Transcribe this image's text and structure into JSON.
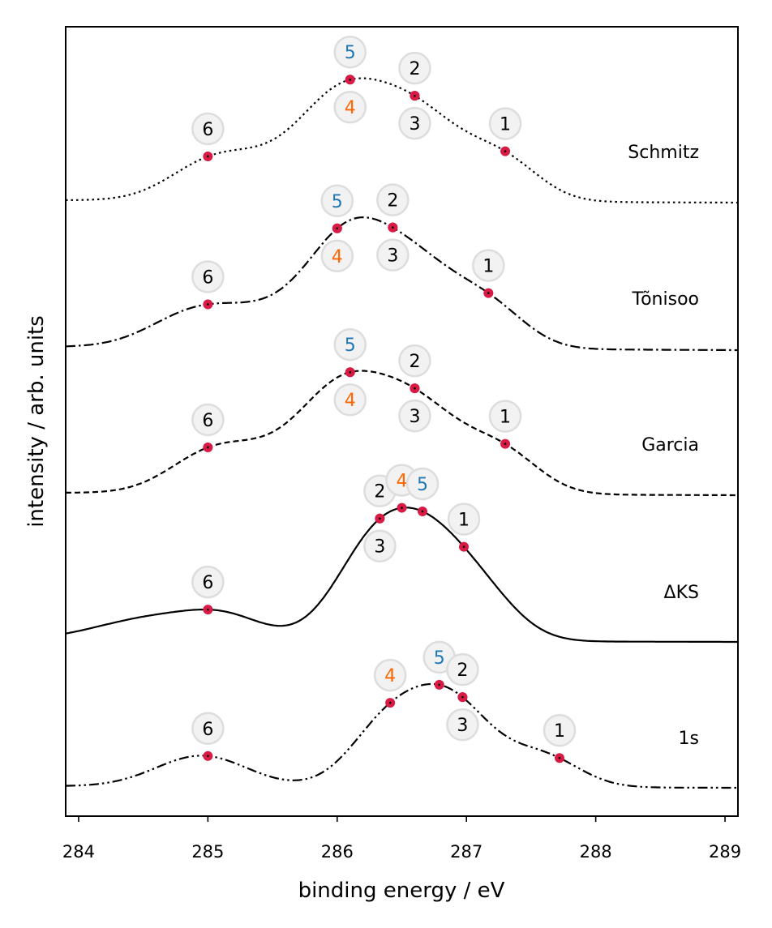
{
  "chart_data": {
    "type": "line",
    "xlabel": "binding energy / eV",
    "ylabel": "intensity / arb. units",
    "xlim": [
      283.9,
      289.1
    ],
    "x_ticks": [
      "284",
      "285",
      "286",
      "287",
      "288",
      "289"
    ],
    "y_ticks": "none",
    "grid": false,
    "legend": "series labels printed at right end of each curve",
    "colors": {
      "marker": "#d81b45",
      "label_blue": "#1f77b4",
      "label_orange": "#ff6600",
      "label_black": "#000000",
      "circle_fill": "#f2f2f2",
      "circle_edge": "#dddddd"
    },
    "series": [
      {
        "name": "Schmitz",
        "linestyle": "dotted",
        "peaks": [
          {
            "label": "6",
            "x": 285.0,
            "color": "black",
            "label_pos": "above"
          },
          {
            "label": "5",
            "x": 286.1,
            "color": "blue",
            "label_pos": "above"
          },
          {
            "label": "4",
            "x": 286.1,
            "color": "orange",
            "label_pos": "below"
          },
          {
            "label": "2",
            "x": 286.6,
            "color": "black",
            "label_pos": "above"
          },
          {
            "label": "3",
            "x": 286.6,
            "color": "black",
            "label_pos": "below"
          },
          {
            "label": "1",
            "x": 287.3,
            "color": "black",
            "label_pos": "above"
          }
        ]
      },
      {
        "name": "Tõnisoo",
        "linestyle": "dashdot",
        "peaks": [
          {
            "label": "6",
            "x": 285.0,
            "color": "black",
            "label_pos": "above"
          },
          {
            "label": "5",
            "x": 286.0,
            "color": "blue",
            "label_pos": "above"
          },
          {
            "label": "4",
            "x": 286.0,
            "color": "orange",
            "label_pos": "below"
          },
          {
            "label": "2",
            "x": 286.43,
            "color": "black",
            "label_pos": "above"
          },
          {
            "label": "3",
            "x": 286.43,
            "color": "black",
            "label_pos": "below"
          },
          {
            "label": "1",
            "x": 287.17,
            "color": "black",
            "label_pos": "above"
          }
        ]
      },
      {
        "name": "Garcia",
        "linestyle": "dashed",
        "peaks": [
          {
            "label": "6",
            "x": 285.0,
            "color": "black",
            "label_pos": "above"
          },
          {
            "label": "5",
            "x": 286.1,
            "color": "blue",
            "label_pos": "above"
          },
          {
            "label": "4",
            "x": 286.1,
            "color": "orange",
            "label_pos": "below"
          },
          {
            "label": "2",
            "x": 286.6,
            "color": "black",
            "label_pos": "above"
          },
          {
            "label": "3",
            "x": 286.6,
            "color": "black",
            "label_pos": "below"
          },
          {
            "label": "1",
            "x": 287.3,
            "color": "black",
            "label_pos": "above"
          }
        ]
      },
      {
        "name": "ΔKS",
        "linestyle": "solid",
        "peaks": [
          {
            "label": "6",
            "x": 285.0,
            "color": "black",
            "label_pos": "above"
          },
          {
            "label": "2",
            "x": 286.33,
            "color": "black",
            "label_pos": "above-left"
          },
          {
            "label": "3",
            "x": 286.33,
            "color": "black",
            "label_pos": "below"
          },
          {
            "label": "4",
            "x": 286.5,
            "color": "orange",
            "label_pos": "above"
          },
          {
            "label": "5",
            "x": 286.66,
            "color": "blue",
            "label_pos": "above"
          },
          {
            "label": "1",
            "x": 286.98,
            "color": "black",
            "label_pos": "above"
          }
        ]
      },
      {
        "name": "1s",
        "linestyle": "dashdotdot",
        "peaks": [
          {
            "label": "6",
            "x": 285.0,
            "color": "black",
            "label_pos": "above"
          },
          {
            "label": "4",
            "x": 286.41,
            "color": "orange",
            "label_pos": "above"
          },
          {
            "label": "5",
            "x": 286.79,
            "color": "blue",
            "label_pos": "above"
          },
          {
            "label": "2",
            "x": 286.97,
            "color": "black",
            "label_pos": "above"
          },
          {
            "label": "3",
            "x": 286.97,
            "color": "black",
            "label_pos": "below"
          },
          {
            "label": "1",
            "x": 287.72,
            "color": "black",
            "label_pos": "above"
          }
        ]
      }
    ]
  }
}
